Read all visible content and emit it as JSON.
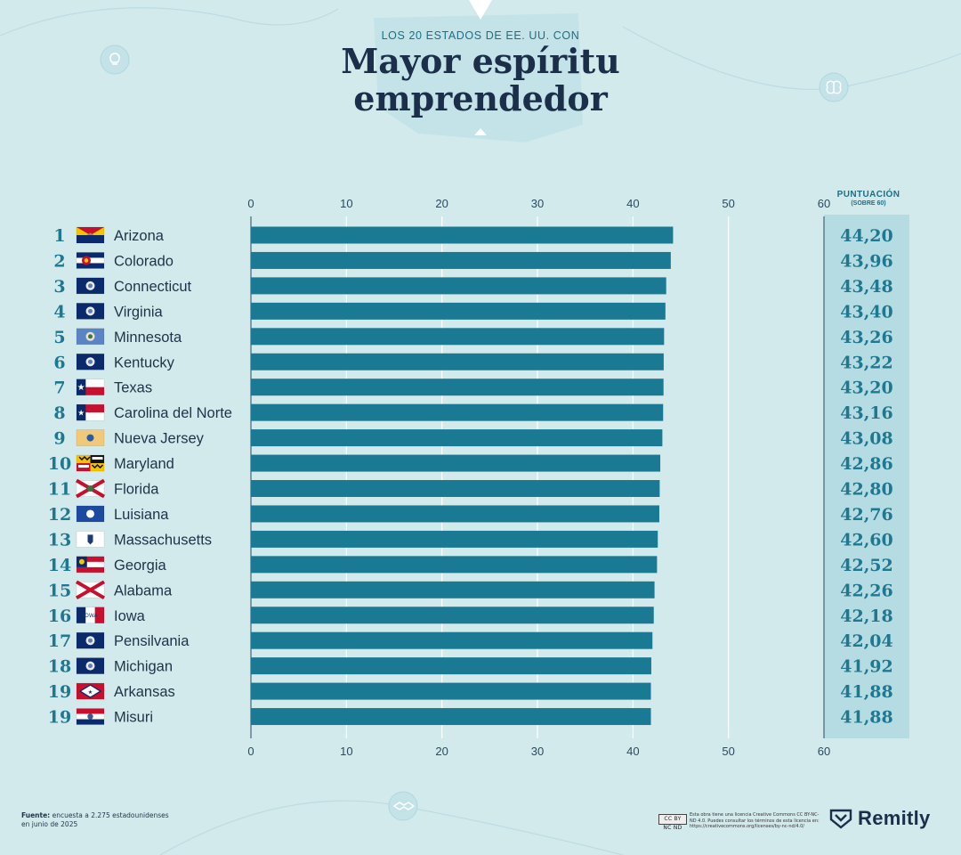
{
  "header": {
    "kicker": "LOS 20 ESTADOS DE EE. UU. CON",
    "title_line1": "Mayor espíritu",
    "title_line2": "emprendedor"
  },
  "score_header": {
    "line1": "PUNTUACIÓN",
    "line2": "(SOBRE 60)"
  },
  "colors": {
    "background": "#d3eaed",
    "bar": "#1a7a93",
    "score_panel": "#b6dce3",
    "rank_text": "#1e7890",
    "title_text": "#1c2f4a"
  },
  "chart_data": {
    "type": "bar",
    "orientation": "horizontal",
    "xlim": [
      0,
      60
    ],
    "x_ticks": [
      0,
      10,
      20,
      30,
      40,
      50,
      60
    ],
    "grid": true,
    "rows": [
      {
        "rank": "1",
        "state": "Arizona",
        "flag": "arizona-flag",
        "value": 44.2,
        "label": "44,20"
      },
      {
        "rank": "2",
        "state": "Colorado",
        "flag": "colorado-flag",
        "value": 43.96,
        "label": "43,96"
      },
      {
        "rank": "3",
        "state": "Connecticut",
        "flag": "connecticut-flag",
        "value": 43.48,
        "label": "43,48"
      },
      {
        "rank": "4",
        "state": "Virginia",
        "flag": "virginia-flag",
        "value": 43.4,
        "label": "43,40"
      },
      {
        "rank": "5",
        "state": "Minnesota",
        "flag": "minnesota-flag",
        "value": 43.26,
        "label": "43,26"
      },
      {
        "rank": "6",
        "state": "Kentucky",
        "flag": "kentucky-flag",
        "value": 43.22,
        "label": "43,22"
      },
      {
        "rank": "7",
        "state": "Texas",
        "flag": "texas-flag",
        "value": 43.2,
        "label": "43,20"
      },
      {
        "rank": "8",
        "state": "Carolina del Norte",
        "flag": "north-carolina-flag",
        "value": 43.16,
        "label": "43,16"
      },
      {
        "rank": "9",
        "state": "Nueva Jersey",
        "flag": "new-jersey-flag",
        "value": 43.08,
        "label": "43,08"
      },
      {
        "rank": "10",
        "state": "Maryland",
        "flag": "maryland-flag",
        "value": 42.86,
        "label": "42,86"
      },
      {
        "rank": "11",
        "state": "Florida",
        "flag": "florida-flag",
        "value": 42.8,
        "label": "42,80"
      },
      {
        "rank": "12",
        "state": "Luisiana",
        "flag": "louisiana-flag",
        "value": 42.76,
        "label": "42,76"
      },
      {
        "rank": "13",
        "state": "Massachusetts",
        "flag": "massachusetts-flag",
        "value": 42.6,
        "label": "42,60"
      },
      {
        "rank": "14",
        "state": "Georgia",
        "flag": "georgia-flag",
        "value": 42.52,
        "label": "42,52"
      },
      {
        "rank": "15",
        "state": "Alabama",
        "flag": "alabama-flag",
        "value": 42.26,
        "label": "42,26"
      },
      {
        "rank": "16",
        "state": "Iowa",
        "flag": "iowa-flag",
        "value": 42.18,
        "label": "42,18"
      },
      {
        "rank": "17",
        "state": "Pensilvania",
        "flag": "pennsylvania-flag",
        "value": 42.04,
        "label": "42,04"
      },
      {
        "rank": "18",
        "state": "Michigan",
        "flag": "michigan-flag",
        "value": 41.92,
        "label": "41,92"
      },
      {
        "rank": "19",
        "state": "Arkansas",
        "flag": "arkansas-flag",
        "value": 41.88,
        "label": "41,88"
      },
      {
        "rank": "19",
        "state": "Misuri",
        "flag": "missouri-flag",
        "value": 41.88,
        "label": "41,88"
      }
    ]
  },
  "footer": {
    "source_label": "Fuente:",
    "source_text": "encuesta a 2.275 estadounidenses",
    "source_text2": "en junio de 2025",
    "cc_badge": "CC BY NC ND",
    "license_text": "Esta obra tiene una licencia Creative Commons CC BY-NC-ND 4.0. Puedes consultar los términos de esta licencia en: https://creativecommons.org/licenses/by-nc-nd/4.0/",
    "brand": "Remitly"
  }
}
